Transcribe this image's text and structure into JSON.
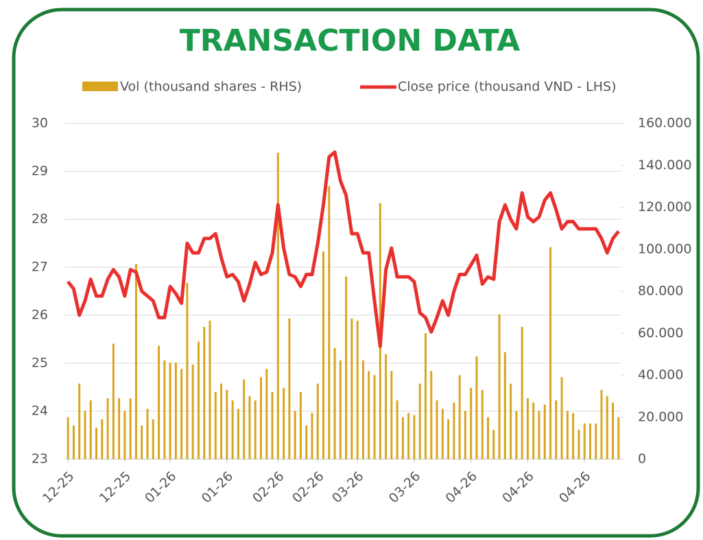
{
  "chart_data": {
    "type": "bar-line",
    "title": "TRANSACTION DATA",
    "categories": [
      "12-25",
      null,
      null,
      null,
      null,
      null,
      null,
      null,
      null,
      null,
      "12-25",
      null,
      null,
      null,
      null,
      null,
      null,
      null,
      "01-26",
      null,
      null,
      null,
      null,
      null,
      null,
      null,
      null,
      null,
      "01-26",
      null,
      null,
      null,
      null,
      null,
      null,
      null,
      null,
      "02-26",
      null,
      null,
      null,
      null,
      null,
      null,
      "02-26",
      null,
      null,
      null,
      null,
      null,
      null,
      "03-26",
      null,
      null,
      null,
      null,
      null,
      null,
      null,
      null,
      null,
      "03-26",
      null,
      null,
      null,
      null,
      null,
      null,
      null,
      null,
      null,
      "04-26",
      null,
      null,
      null,
      null,
      null,
      null,
      null,
      null,
      null,
      "04-26",
      null,
      null,
      null,
      null,
      null,
      null,
      null,
      null,
      null,
      "04-26",
      null,
      null,
      null,
      null,
      null,
      null
    ],
    "series": [
      {
        "name": "Vol (thousand shares - RHS)",
        "kind": "bar",
        "axis": "y2",
        "color": "#d9a520",
        "values": [
          20000,
          16000,
          36000,
          23000,
          28000,
          15000,
          19000,
          29000,
          55000,
          29000,
          23000,
          29000,
          93000,
          16000,
          24000,
          19000,
          54000,
          47000,
          46000,
          46000,
          43000,
          84000,
          45000,
          56000,
          63000,
          66000,
          32000,
          36000,
          33000,
          28000,
          24000,
          38000,
          30000,
          28000,
          39000,
          43000,
          32000,
          146000,
          34000,
          67000,
          23000,
          32000,
          16000,
          22000,
          36000,
          99000,
          130000,
          53000,
          47000,
          87000,
          67000,
          66000,
          47000,
          42000,
          40000,
          122000,
          50000,
          42000,
          28000,
          20000,
          22000,
          21000,
          36000,
          60000,
          42000,
          28000,
          24000,
          19000,
          27000,
          40000,
          23000,
          34000,
          49000,
          33000,
          20000,
          14000,
          69000,
          51000,
          36000,
          23000,
          63000,
          29000,
          27000,
          23000,
          26000,
          101000,
          28000,
          39000,
          23000,
          22000,
          14000,
          17000,
          17000,
          17000,
          33000,
          30000,
          27000,
          20000
        ]
      },
      {
        "name": "Close price (thousand VND - LHS)",
        "kind": "line",
        "color": "#e8312f",
        "values": [
          26.7,
          26.55,
          26.0,
          26.3,
          26.75,
          26.4,
          26.4,
          26.75,
          26.95,
          26.8,
          26.4,
          26.95,
          26.9,
          26.5,
          26.4,
          26.3,
          25.95,
          25.95,
          26.6,
          26.45,
          26.25,
          27.5,
          27.3,
          27.3,
          27.6,
          27.6,
          27.7,
          27.2,
          26.8,
          26.85,
          26.7,
          26.3,
          26.65,
          27.1,
          26.85,
          26.9,
          27.3,
          28.3,
          27.4,
          26.85,
          26.8,
          26.6,
          26.85,
          26.85,
          27.5,
          28.3,
          29.3,
          29.4,
          28.8,
          28.5,
          27.7,
          27.7,
          27.3,
          27.3,
          26.3,
          25.35,
          26.95,
          27.4,
          26.8,
          26.8,
          26.8,
          26.7,
          26.05,
          25.95,
          25.65,
          25.95,
          26.3,
          26.0,
          26.5,
          26.85,
          26.85,
          27.05,
          27.25,
          26.65,
          26.8,
          26.75,
          27.95,
          28.3,
          28.0,
          27.8,
          28.55,
          28.05,
          27.95,
          28.05,
          28.4,
          28.55,
          28.2,
          27.8,
          27.95,
          27.95,
          27.8,
          27.8,
          27.8,
          27.8,
          27.6,
          27.3,
          27.6,
          27.75
        ]
      }
    ],
    "ylim": [
      23,
      30
    ],
    "yticks": [
      23,
      24,
      25,
      26,
      27,
      28,
      29,
      30
    ],
    "y2lim": [
      0,
      160000
    ],
    "y2ticks": [
      0,
      {
        "value": 20000,
        "label": "20.000"
      },
      {
        "value": 40000,
        "label": "40.000"
      },
      {
        "value": 60000,
        "label": "60.000"
      },
      {
        "value": 80000,
        "label": "80.000"
      },
      {
        "value": 100000,
        "label": "100.000"
      },
      {
        "value": 120000,
        "label": "120.000"
      },
      {
        "value": 140000,
        "label": "140.000"
      },
      {
        "value": 160000,
        "label": "160.000"
      }
    ],
    "grid": true,
    "legend": "top"
  }
}
